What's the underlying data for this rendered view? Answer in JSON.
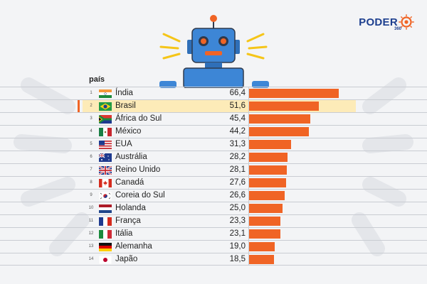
{
  "brand": {
    "name": "PODER",
    "sub": "360",
    "accent": "#f06425",
    "brand_blue": "#1d3f8f"
  },
  "chart_data": {
    "type": "bar",
    "orientation": "horizontal",
    "column_header": "país",
    "highlight_category": "Brasil",
    "highlight_color": "#fdebb8",
    "bar_color": "#f06425",
    "xlim": [
      0,
      66.4
    ],
    "rows": [
      {
        "rank": "1",
        "flag": "india-flag-icon",
        "category": "Índia",
        "value": 66.4,
        "label": "66,4"
      },
      {
        "rank": "2",
        "flag": "brazil-flag-icon",
        "category": "Brasil",
        "value": 51.6,
        "label": "51,6"
      },
      {
        "rank": "3",
        "flag": "south-africa-flag-icon",
        "category": "África do Sul",
        "value": 45.4,
        "label": "45,4"
      },
      {
        "rank": "4",
        "flag": "mexico-flag-icon",
        "category": "México",
        "value": 44.2,
        "label": "44,2"
      },
      {
        "rank": "5",
        "flag": "usa-flag-icon",
        "category": "EUA",
        "value": 31.3,
        "label": "31,3"
      },
      {
        "rank": "6",
        "flag": "australia-flag-icon",
        "category": "Austrália",
        "value": 28.2,
        "label": "28,2"
      },
      {
        "rank": "7",
        "flag": "uk-flag-icon",
        "category": "Reino Unido",
        "value": 28.1,
        "label": "28,1"
      },
      {
        "rank": "8",
        "flag": "canada-flag-icon",
        "category": "Canadá",
        "value": 27.6,
        "label": "27,6"
      },
      {
        "rank": "9",
        "flag": "south-korea-flag-icon",
        "category": "Coreia do Sul",
        "value": 26.6,
        "label": "26,6"
      },
      {
        "rank": "10",
        "flag": "netherlands-flag-icon",
        "category": "Holanda",
        "value": 25.0,
        "label": "25,0"
      },
      {
        "rank": "11",
        "flag": "france-flag-icon",
        "category": "França",
        "value": 23.3,
        "label": "23,3"
      },
      {
        "rank": "12",
        "flag": "italy-flag-icon",
        "category": "Itália",
        "value": 23.1,
        "label": "23,1"
      },
      {
        "rank": "13",
        "flag": "germany-flag-icon",
        "category": "Alemanha",
        "value": 19.0,
        "label": "19,0"
      },
      {
        "rank": "14",
        "flag": "japan-flag-icon",
        "category": "Japão",
        "value": 18.5,
        "label": "18,5"
      }
    ]
  }
}
